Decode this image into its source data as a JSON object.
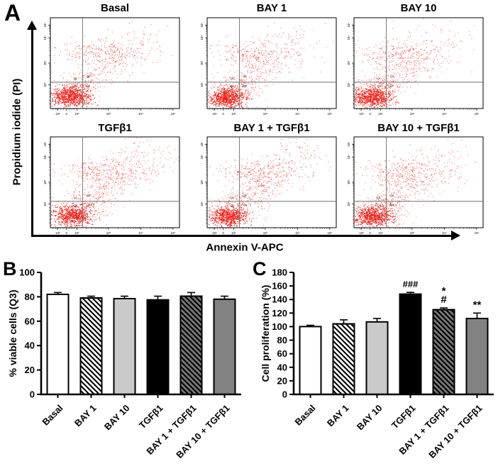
{
  "figure": {
    "panel_a": {
      "label": "A",
      "y_axis_label": "Propidium iodide (PI)",
      "x_axis_label": "Annexin V-APC"
    },
    "panel_b": {
      "label": "B"
    },
    "panel_c": {
      "label": "C"
    }
  },
  "chart_data": [
    {
      "id": "panel_A_flow_cytometry",
      "type": "scatter",
      "xlabel": "Annexin V-APC",
      "ylabel": "Propidium iodide (PI)",
      "dot_color": "#e8231d",
      "quadrant_labels": [
        "Q1",
        "Q2",
        "Q3",
        "Q4"
      ],
      "vline_frac": 0.25,
      "hline_frac": 0.71,
      "x_ticks": [
        {
          "f": 0.055,
          "t": "-10²"
        },
        {
          "f": 0.125,
          "t": "0"
        },
        {
          "f": 0.205,
          "t": "10²"
        },
        {
          "f": 0.45,
          "t": "10³"
        },
        {
          "f": 0.7,
          "t": "10⁴"
        },
        {
          "f": 0.95,
          "t": "10⁵"
        }
      ],
      "y_ticks": [
        {
          "f": 0.08,
          "t": "10⁵"
        },
        {
          "f": 0.22,
          "t": "10⁴"
        },
        {
          "f": 0.5,
          "t": "10³"
        },
        {
          "f": 0.74,
          "t": "10²"
        }
      ],
      "plots": [
        {
          "title": "Basal",
          "seed": 11,
          "clusters": [
            {
              "kind": "gauss",
              "cx": 0.16,
              "cy": 0.13,
              "sx": 0.07,
              "sy": 0.052,
              "n": 680,
              "op": 0.9
            },
            {
              "kind": "gauss",
              "cx": 0.21,
              "cy": 0.2,
              "sx": 0.11,
              "sy": 0.095,
              "n": 220,
              "op": 0.45
            },
            {
              "kind": "diag",
              "ax": 0.16,
              "ay": 0.16,
              "bx": 0.7,
              "by": 0.78,
              "jx": 0.1,
              "jy": 0.09,
              "n": 360,
              "op": 0.5
            },
            {
              "kind": "gauss",
              "cx": 0.33,
              "cy": 0.62,
              "sx": 0.13,
              "sy": 0.065,
              "n": 160,
              "op": 0.5
            }
          ]
        },
        {
          "title": "BAY 1",
          "seed": 23,
          "clusters": [
            {
              "kind": "gauss",
              "cx": 0.15,
              "cy": 0.12,
              "sx": 0.072,
              "sy": 0.05,
              "n": 680,
              "op": 0.9
            },
            {
              "kind": "gauss",
              "cx": 0.2,
              "cy": 0.19,
              "sx": 0.11,
              "sy": 0.09,
              "n": 230,
              "op": 0.45
            },
            {
              "kind": "diag",
              "ax": 0.15,
              "ay": 0.15,
              "bx": 0.68,
              "by": 0.74,
              "jx": 0.1,
              "jy": 0.09,
              "n": 390,
              "op": 0.5
            },
            {
              "kind": "gauss",
              "cx": 0.3,
              "cy": 0.6,
              "sx": 0.13,
              "sy": 0.07,
              "n": 180,
              "op": 0.5
            }
          ]
        },
        {
          "title": "BAY 10",
          "seed": 37,
          "clusters": [
            {
              "kind": "gauss",
              "cx": 0.14,
              "cy": 0.12,
              "sx": 0.075,
              "sy": 0.052,
              "n": 700,
              "op": 0.9
            },
            {
              "kind": "gauss",
              "cx": 0.19,
              "cy": 0.19,
              "sx": 0.11,
              "sy": 0.09,
              "n": 230,
              "op": 0.45
            },
            {
              "kind": "diag",
              "ax": 0.14,
              "ay": 0.15,
              "bx": 0.66,
              "by": 0.72,
              "jx": 0.11,
              "jy": 0.09,
              "n": 400,
              "op": 0.5
            },
            {
              "kind": "gauss",
              "cx": 0.29,
              "cy": 0.58,
              "sx": 0.13,
              "sy": 0.07,
              "n": 190,
              "op": 0.5
            }
          ]
        },
        {
          "title": "TGFβ1",
          "seed": 51,
          "clusters": [
            {
              "kind": "gauss",
              "cx": 0.17,
              "cy": 0.13,
              "sx": 0.075,
              "sy": 0.055,
              "n": 640,
              "op": 0.9
            },
            {
              "kind": "gauss",
              "cx": 0.23,
              "cy": 0.21,
              "sx": 0.12,
              "sy": 0.1,
              "n": 240,
              "op": 0.45
            },
            {
              "kind": "diag",
              "ax": 0.17,
              "ay": 0.16,
              "bx": 0.78,
              "by": 0.82,
              "jx": 0.11,
              "jy": 0.09,
              "n": 470,
              "op": 0.5
            },
            {
              "kind": "gauss",
              "cx": 0.36,
              "cy": 0.62,
              "sx": 0.14,
              "sy": 0.07,
              "n": 210,
              "op": 0.5
            }
          ]
        },
        {
          "title": "BAY 1 + TGFβ1",
          "seed": 67,
          "clusters": [
            {
              "kind": "gauss",
              "cx": 0.16,
              "cy": 0.12,
              "sx": 0.072,
              "sy": 0.052,
              "n": 660,
              "op": 0.9
            },
            {
              "kind": "gauss",
              "cx": 0.21,
              "cy": 0.2,
              "sx": 0.11,
              "sy": 0.095,
              "n": 230,
              "op": 0.45
            },
            {
              "kind": "diag",
              "ax": 0.16,
              "ay": 0.15,
              "bx": 0.74,
              "by": 0.8,
              "jx": 0.1,
              "jy": 0.09,
              "n": 430,
              "op": 0.5
            },
            {
              "kind": "gauss",
              "cx": 0.33,
              "cy": 0.6,
              "sx": 0.13,
              "sy": 0.07,
              "n": 190,
              "op": 0.5
            }
          ]
        },
        {
          "title": "BAY 10 + TGFβ1",
          "seed": 83,
          "clusters": [
            {
              "kind": "gauss",
              "cx": 0.15,
              "cy": 0.12,
              "sx": 0.075,
              "sy": 0.055,
              "n": 680,
              "op": 0.9
            },
            {
              "kind": "gauss",
              "cx": 0.2,
              "cy": 0.2,
              "sx": 0.11,
              "sy": 0.095,
              "n": 230,
              "op": 0.45
            },
            {
              "kind": "diag",
              "ax": 0.15,
              "ay": 0.15,
              "bx": 0.72,
              "by": 0.78,
              "jx": 0.11,
              "jy": 0.09,
              "n": 440,
              "op": 0.5
            },
            {
              "kind": "gauss",
              "cx": 0.31,
              "cy": 0.6,
              "sx": 0.13,
              "sy": 0.07,
              "n": 200,
              "op": 0.5
            }
          ]
        }
      ]
    },
    {
      "id": "panel_B",
      "type": "bar",
      "title": "",
      "ylabel": "% viable cells (Q3)",
      "xlabel": "",
      "categories": [
        "Basal",
        "BAY 1",
        "BAY 10",
        "TGFβ1",
        "BAY 1 + TGFβ1",
        "BAY 10 + TGFβ1"
      ],
      "values": [
        82,
        79,
        78.5,
        77.5,
        80.5,
        78
      ],
      "errors": [
        1.5,
        1.5,
        2,
        3,
        3,
        2.5
      ],
      "annotations": [
        "",
        "",
        "",
        "",
        "",
        ""
      ],
      "ylim": [
        0,
        100
      ],
      "ytick_step": 20,
      "grid": false,
      "bar_styles": [
        {
          "fill": "#ffffff",
          "pattern": "stripe-none"
        },
        {
          "fill": "#ffffff",
          "pattern": "stripe"
        },
        {
          "fill": "#cacaca",
          "pattern": "stripe-none"
        },
        {
          "fill": "#000000",
          "pattern": "stripe-none"
        },
        {
          "fill": "#787878",
          "pattern": "stripe"
        },
        {
          "fill": "#828282",
          "pattern": "stripe-none"
        }
      ]
    },
    {
      "id": "panel_C",
      "type": "bar",
      "title": "",
      "ylabel": "Cell proliferation (%)",
      "xlabel": "",
      "categories": [
        "Basal",
        "BAY 1",
        "BAY 10",
        "TGFβ1",
        "BAY 1 + TGFβ1",
        "BAY 10 + TGFβ1"
      ],
      "values": [
        100,
        104,
        107,
        148,
        125,
        112
      ],
      "errors": [
        2,
        6,
        5,
        2.5,
        2.5,
        8
      ],
      "annotations": [
        "",
        "",
        "",
        "###",
        "*\n#",
        "**"
      ],
      "ylim": [
        0,
        180
      ],
      "ytick_step": 20,
      "grid": false,
      "bar_styles": [
        {
          "fill": "#ffffff",
          "pattern": "stripe-none"
        },
        {
          "fill": "#ffffff",
          "pattern": "stripe"
        },
        {
          "fill": "#cacaca",
          "pattern": "stripe-none"
        },
        {
          "fill": "#000000",
          "pattern": "stripe-none"
        },
        {
          "fill": "#787878",
          "pattern": "stripe"
        },
        {
          "fill": "#828282",
          "pattern": "stripe-none"
        }
      ]
    }
  ]
}
